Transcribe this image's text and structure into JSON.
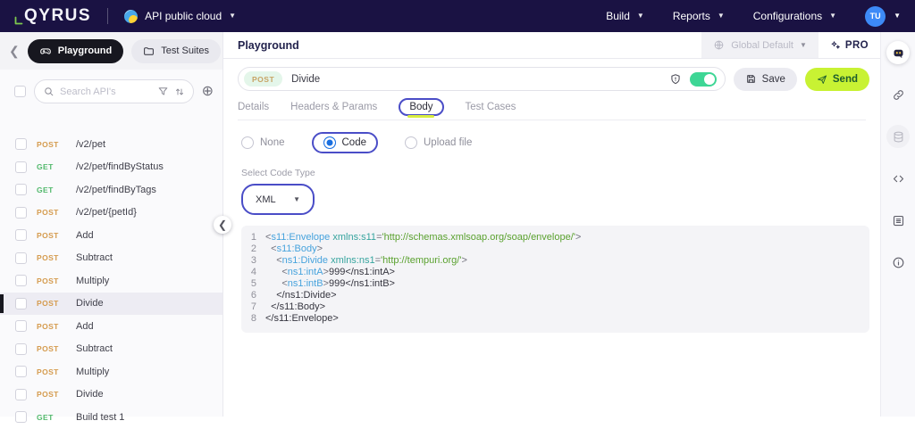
{
  "palette": {
    "navbar_bg": "#1a1243",
    "accent_lime": "#c8f233",
    "toggle_green": "#3ed695",
    "post_color": "#d59b4e",
    "get_color": "#53b96d",
    "annotation_ring": "#4a4dc7",
    "radio_active_blue": "#1a6fe0",
    "xml_tag_blue": "#47a3dd",
    "xml_attr_teal": "#36a49e",
    "xml_string_green": "#5aa12f"
  },
  "navbar": {
    "logo": "QYRUS",
    "workspace": {
      "label": "API public cloud"
    },
    "menus": [
      {
        "label": "Build"
      },
      {
        "label": "Reports"
      },
      {
        "label": "Configurations"
      }
    ],
    "avatar": "TU"
  },
  "sidebar": {
    "tabs": [
      {
        "label": "Playground",
        "active": true
      },
      {
        "label": "Test Suites",
        "active": false
      }
    ],
    "search": {
      "placeholder": "Search API's"
    },
    "apis": [
      {
        "method": "POST",
        "name": "/v2/pet",
        "selected": false
      },
      {
        "method": "GET",
        "name": "/v2/pet/findByStatus",
        "selected": false
      },
      {
        "method": "GET",
        "name": "/v2/pet/findByTags",
        "selected": false
      },
      {
        "method": "POST",
        "name": "/v2/pet/{petId}",
        "selected": false
      },
      {
        "method": "POST",
        "name": "Add",
        "selected": false
      },
      {
        "method": "POST",
        "name": "Subtract",
        "selected": false
      },
      {
        "method": "POST",
        "name": "Multiply",
        "selected": false
      },
      {
        "method": "POST",
        "name": "Divide",
        "selected": true
      },
      {
        "method": "POST",
        "name": "Add",
        "selected": false
      },
      {
        "method": "POST",
        "name": "Subtract",
        "selected": false
      },
      {
        "method": "POST",
        "name": "Multiply",
        "selected": false
      },
      {
        "method": "POST",
        "name": "Divide",
        "selected": false
      },
      {
        "method": "GET",
        "name": "Build test 1",
        "selected": false
      }
    ]
  },
  "main": {
    "title": "Playground",
    "environment": {
      "label": "Global Default"
    },
    "pro_label": "PRO",
    "request": {
      "method": "POST",
      "name": "Divide",
      "save_label": "Save",
      "send_label": "Send"
    },
    "tabs": [
      {
        "label": "Details",
        "active": false,
        "annotated": false
      },
      {
        "label": "Headers & Params",
        "active": false,
        "annotated": false
      },
      {
        "label": "Body",
        "active": true,
        "annotated": true
      },
      {
        "label": "Test Cases",
        "active": false,
        "annotated": false
      }
    ],
    "body_modes": [
      {
        "label": "None",
        "selected": false,
        "annotated": false
      },
      {
        "label": "Code",
        "selected": true,
        "annotated": true
      },
      {
        "label": "Upload file",
        "selected": false,
        "annotated": false
      }
    ],
    "code_type": {
      "label": "Select Code Type",
      "value": "XML"
    },
    "editor": {
      "lines": [
        "<s11:Envelope xmlns:s11='http://schemas.xmlsoap.org/soap/envelope/'>",
        "  <s11:Body>",
        "    <ns1:Divide xmlns:ns1='http://tempuri.org/'>",
        "      <ns1:intA>999</ns1:intA>",
        "      <ns1:intB>999</ns1:intB>",
        "    </ns1:Divide>",
        "  </s11:Body>",
        "</s11:Envelope>"
      ]
    }
  },
  "right_rail": {
    "icons": [
      {
        "name": "assistant-robot",
        "variant": "circled"
      },
      {
        "name": "link",
        "variant": ""
      },
      {
        "name": "database",
        "variant": "muted"
      },
      {
        "name": "code",
        "variant": ""
      },
      {
        "name": "request-form",
        "variant": ""
      },
      {
        "name": "info",
        "variant": ""
      }
    ]
  }
}
